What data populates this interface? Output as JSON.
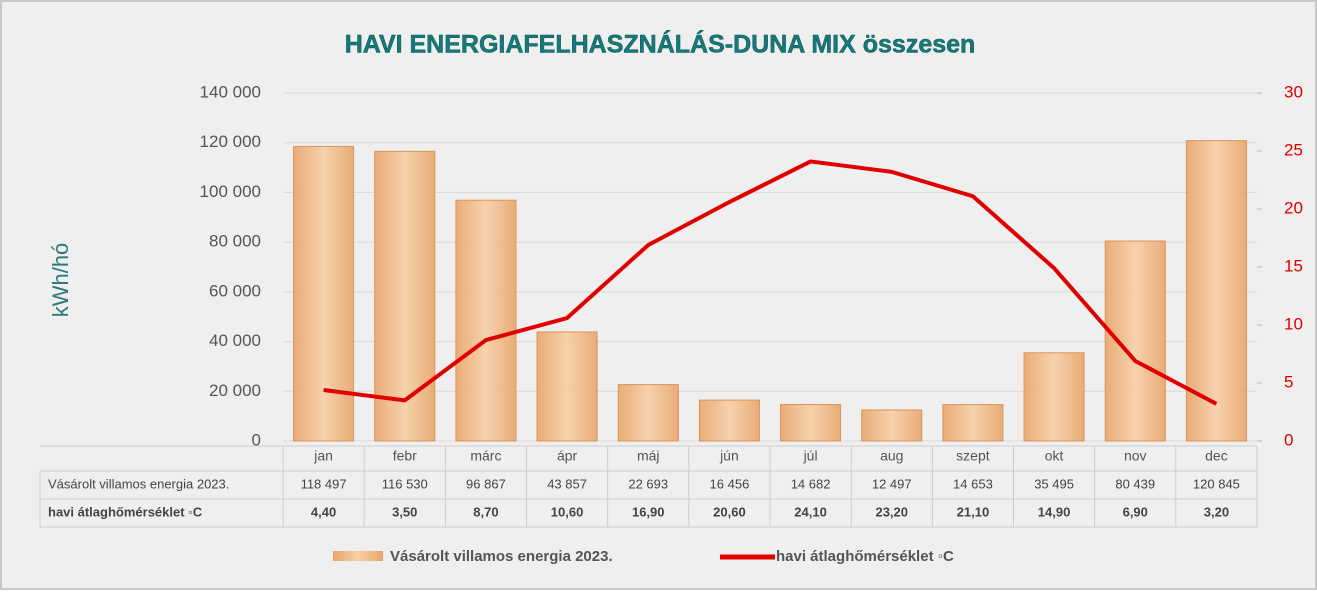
{
  "chart_data": {
    "type": "bar_line",
    "title": "HAVI ENERGIAFELHASZNÁLÁS-DUNA MIX összesen",
    "y_label": "kWh/hó",
    "categories": [
      "jan",
      "febr",
      "márc",
      "ápr",
      "máj",
      "jún",
      "júl",
      "aug",
      "szept",
      "okt",
      "nov",
      "dec"
    ],
    "series": [
      {
        "name": "Vásárolt villamos energia 2023.",
        "color": "#f3bd8a",
        "type": "bar",
        "values": [
          118497,
          116530,
          96867,
          43857,
          22693,
          16456,
          14682,
          12497,
          14653,
          35495,
          80439,
          120845
        ],
        "value_labels": [
          "118 497",
          "116 530",
          "96 867",
          "43 857",
          "22 693",
          "16 456",
          "14 682",
          "12 497",
          "14 653",
          "35 495",
          "80 439",
          "120 845"
        ]
      },
      {
        "name": "havi átlaghőmérséklet ◦C",
        "color": "#e00000",
        "type": "line",
        "axis": "y2",
        "values": [
          4.4,
          3.5,
          8.7,
          10.6,
          16.9,
          20.6,
          24.1,
          23.2,
          21.1,
          14.9,
          6.9,
          3.2
        ],
        "value_labels": [
          "4,40",
          "3,50",
          "8,70",
          "10,60",
          "16,90",
          "20,60",
          "24,10",
          "23,20",
          "21,10",
          "14,90",
          "6,90",
          "3,20"
        ]
      }
    ],
    "ylim": [
      0,
      140000
    ],
    "yticks": [
      0,
      {
        "value": 20000,
        "label": "20 000"
      },
      {
        "value": 40000,
        "label": "40 000"
      },
      {
        "value": 60000,
        "label": "60 000"
      },
      {
        "value": 80000,
        "label": "80 000"
      },
      {
        "value": 100000,
        "label": "100 000"
      },
      {
        "value": 120000,
        "label": "120 000"
      },
      {
        "value": 140000,
        "label": "140 000"
      }
    ],
    "y2lim": [
      0,
      30
    ],
    "y2ticks": [
      0,
      5,
      10,
      15,
      20,
      25,
      30
    ],
    "grid": true,
    "legend": "bottom"
  }
}
